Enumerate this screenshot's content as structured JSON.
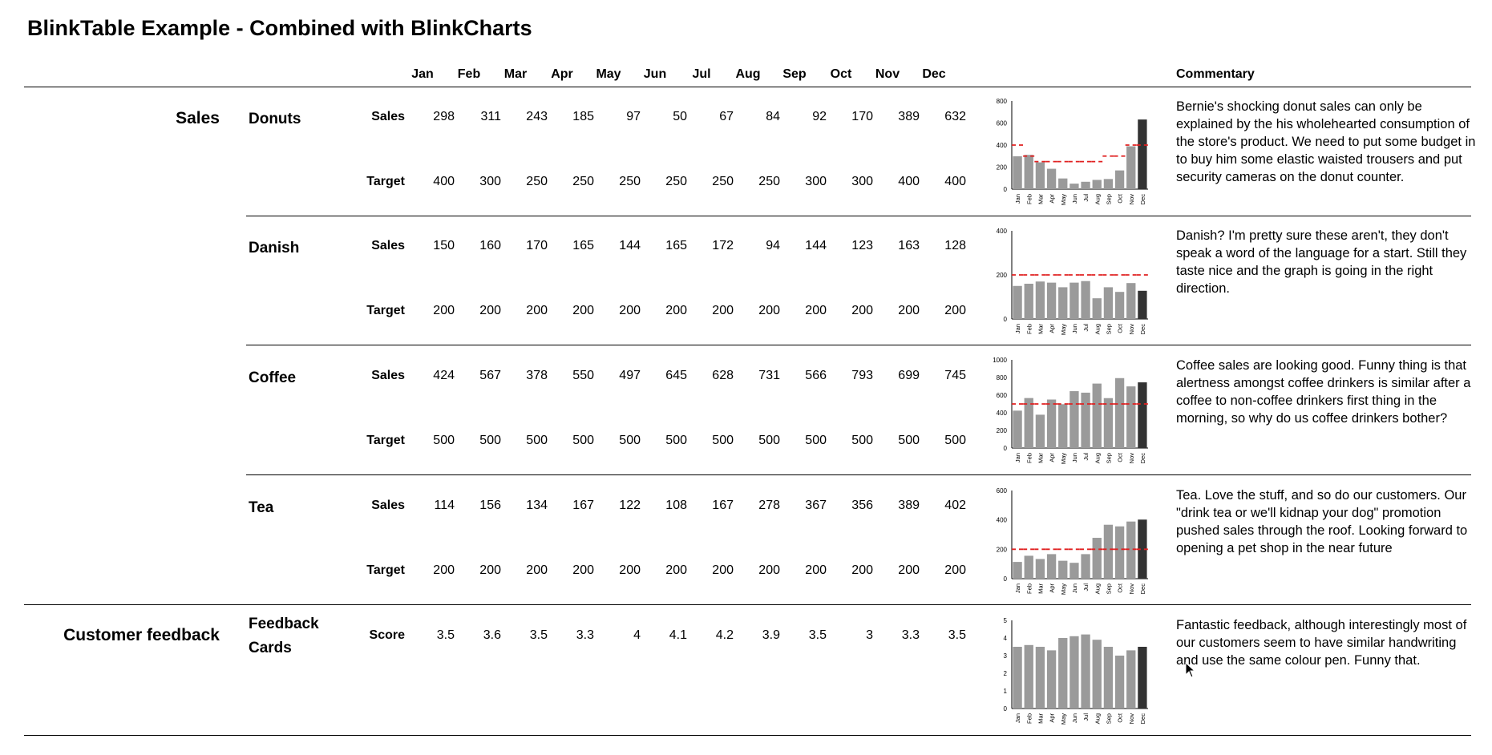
{
  "title": "BlinkTable Example - Combined with BlinkCharts",
  "months": [
    "Jan",
    "Feb",
    "Mar",
    "Apr",
    "May",
    "Jun",
    "Jul",
    "Aug",
    "Sep",
    "Oct",
    "Nov",
    "Dec"
  ],
  "commentary_header": "Commentary",
  "sections": [
    {
      "label": "Sales"
    },
    {
      "label": "Customer feedback"
    }
  ],
  "products": [
    {
      "name": "Donuts",
      "row1_label": "Sales",
      "row2_label": "Target",
      "row1": [
        "298",
        "311",
        "243",
        "185",
        "97",
        "50",
        "67",
        "84",
        "92",
        "170",
        "389",
        "632"
      ],
      "row2": [
        "400",
        "300",
        "250",
        "250",
        "250",
        "250",
        "250",
        "250",
        "300",
        "300",
        "400",
        "400"
      ],
      "commentary": "Bernie's shocking donut sales can only be explained by the his wholehearted consumption of the store's product. We need to put some budget in to buy him some elastic waisted trousers and put security cameras on the donut counter."
    },
    {
      "name": "Danish",
      "row1_label": "Sales",
      "row2_label": "Target",
      "row1": [
        "150",
        "160",
        "170",
        "165",
        "144",
        "165",
        "172",
        "94",
        "144",
        "123",
        "163",
        "128"
      ],
      "row2": [
        "200",
        "200",
        "200",
        "200",
        "200",
        "200",
        "200",
        "200",
        "200",
        "200",
        "200",
        "200"
      ],
      "commentary": "Danish? I'm pretty sure these aren't, they don't speak a word of the language for a start. Still they taste nice and the graph is going in the right direction."
    },
    {
      "name": "Coffee",
      "row1_label": "Sales",
      "row2_label": "Target",
      "row1": [
        "424",
        "567",
        "378",
        "550",
        "497",
        "645",
        "628",
        "731",
        "566",
        "793",
        "699",
        "745"
      ],
      "row2": [
        "500",
        "500",
        "500",
        "500",
        "500",
        "500",
        "500",
        "500",
        "500",
        "500",
        "500",
        "500"
      ],
      "commentary": "Coffee sales are looking good. Funny thing is that alertness amongst coffee drinkers is similar after a coffee to non-coffee drinkers first thing in the morning, so why do us coffee drinkers bother?"
    },
    {
      "name": "Tea",
      "row1_label": "Sales",
      "row2_label": "Target",
      "row1": [
        "114",
        "156",
        "134",
        "167",
        "122",
        "108",
        "167",
        "278",
        "367",
        "356",
        "389",
        "402"
      ],
      "row2": [
        "200",
        "200",
        "200",
        "200",
        "200",
        "200",
        "200",
        "200",
        "200",
        "200",
        "200",
        "200"
      ],
      "commentary": "Tea. Love the stuff, and so do our customers. Our \"drink tea or we'll kidnap your dog\" promotion pushed sales through the roof. Looking forward to opening a pet shop in the near future"
    },
    {
      "name_line1": "Feedback",
      "name_line2": "Cards",
      "row1_label": "Score",
      "row1": [
        "3.5",
        "3.6",
        "3.5",
        "3.3",
        "4",
        "4.1",
        "4.2",
        "3.9",
        "3.5",
        "3",
        "3.3",
        "3.5"
      ],
      "commentary": "Fantastic feedback, although interestingly most of our customers seem to have similar handwriting and use the same colour pen. Funny that."
    }
  ],
  "chart_data": [
    {
      "type": "bar",
      "categories": [
        "Jan",
        "Feb",
        "Mar",
        "Apr",
        "May",
        "Jun",
        "Jul",
        "Aug",
        "Sep",
        "Oct",
        "Nov",
        "Dec"
      ],
      "series": [
        {
          "values": [
            298,
            311,
            243,
            185,
            97,
            50,
            67,
            84,
            92,
            170,
            389,
            632
          ]
        },
        {
          "values": [
            400,
            300,
            250,
            250,
            250,
            250,
            250,
            250,
            300,
            300,
            400,
            400
          ]
        }
      ],
      "ylim": [
        0,
        800
      ],
      "yticks": [
        "0",
        "200",
        "400",
        "600",
        "800"
      ],
      "highlight_last": true
    },
    {
      "type": "bar",
      "categories": [
        "Jan",
        "Feb",
        "Mar",
        "Apr",
        "May",
        "Jun",
        "Jul",
        "Aug",
        "Sep",
        "Oct",
        "Nov",
        "Dec"
      ],
      "series": [
        {
          "values": [
            150,
            160,
            170,
            165,
            144,
            165,
            172,
            94,
            144,
            123,
            163,
            128
          ]
        },
        {
          "values": [
            200,
            200,
            200,
            200,
            200,
            200,
            200,
            200,
            200,
            200,
            200,
            200
          ]
        }
      ],
      "ylim": [
        0,
        400
      ],
      "yticks": [
        "0",
        "200",
        "400"
      ],
      "highlight_last": true
    },
    {
      "type": "bar",
      "categories": [
        "Jan",
        "Feb",
        "Mar",
        "Apr",
        "May",
        "Jun",
        "Jul",
        "Aug",
        "Sep",
        "Oct",
        "Nov",
        "Dec"
      ],
      "series": [
        {
          "values": [
            424,
            567,
            378,
            550,
            497,
            645,
            628,
            731,
            566,
            793,
            699,
            745
          ]
        },
        {
          "values": [
            500,
            500,
            500,
            500,
            500,
            500,
            500,
            500,
            500,
            500,
            500,
            500
          ]
        }
      ],
      "ylim": [
        0,
        1000
      ],
      "yticks": [
        "0",
        "200",
        "400",
        "600",
        "800",
        "1000"
      ],
      "highlight_last": true
    },
    {
      "type": "bar",
      "categories": [
        "Jan",
        "Feb",
        "Mar",
        "Apr",
        "May",
        "Jun",
        "Jul",
        "Aug",
        "Sep",
        "Oct",
        "Nov",
        "Dec"
      ],
      "series": [
        {
          "values": [
            114,
            156,
            134,
            167,
            122,
            108,
            167,
            278,
            367,
            356,
            389,
            402
          ]
        },
        {
          "values": [
            200,
            200,
            200,
            200,
            200,
            200,
            200,
            200,
            200,
            200,
            200,
            200
          ]
        }
      ],
      "ylim": [
        0,
        600
      ],
      "yticks": [
        "0",
        "200",
        "400",
        "600"
      ],
      "highlight_last": true
    },
    {
      "type": "bar",
      "categories": [
        "Jan",
        "Feb",
        "Mar",
        "Apr",
        "May",
        "Jun",
        "Jul",
        "Aug",
        "Sep",
        "Oct",
        "Nov",
        "Dec"
      ],
      "series": [
        {
          "values": [
            3.5,
            3.6,
            3.5,
            3.3,
            4,
            4.1,
            4.2,
            3.9,
            3.5,
            3,
            3.3,
            3.5
          ]
        }
      ],
      "ylim": [
        0,
        5
      ],
      "yticks": [
        "0",
        "1",
        "2",
        "3",
        "4",
        "5"
      ],
      "highlight_last": true
    }
  ]
}
